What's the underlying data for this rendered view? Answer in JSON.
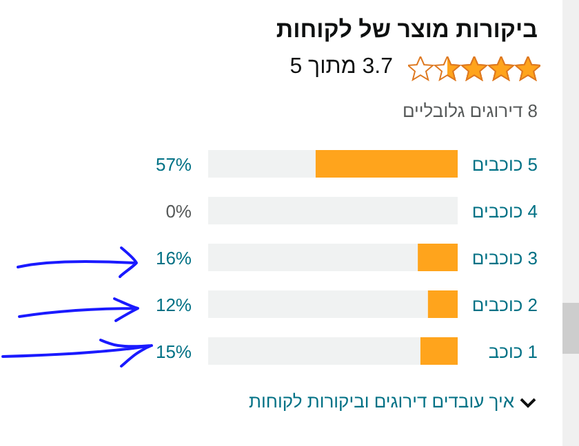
{
  "chart_data": {
    "type": "bar",
    "orientation": "horizontal",
    "stacked": true,
    "title": "ביקורות מוצר של לקוחות",
    "subtitle": "3.7 מתוך 5",
    "annotations": [
      "8 דירוגים גלובליים",
      "איך עובדים דירוגים וביקורות לקוחות"
    ],
    "categories": [
      "5 כוכבים",
      "4 כוכבים",
      "3 כוכבים",
      "2 כוכבים",
      "1 כוכב"
    ],
    "series": [
      {
        "color": "#ffa41c",
        "values": [
          57,
          0,
          16,
          12,
          15
        ],
        "value_labels": [
          "57%",
          "0%",
          "16%",
          "12%",
          "15%"
        ]
      },
      {
        "color": "#f0f2f2",
        "values": [
          43,
          100,
          84,
          88,
          85
        ]
      }
    ],
    "xlim": [
      100,
      0
    ],
    "tick_labels": "y"
  }
}
